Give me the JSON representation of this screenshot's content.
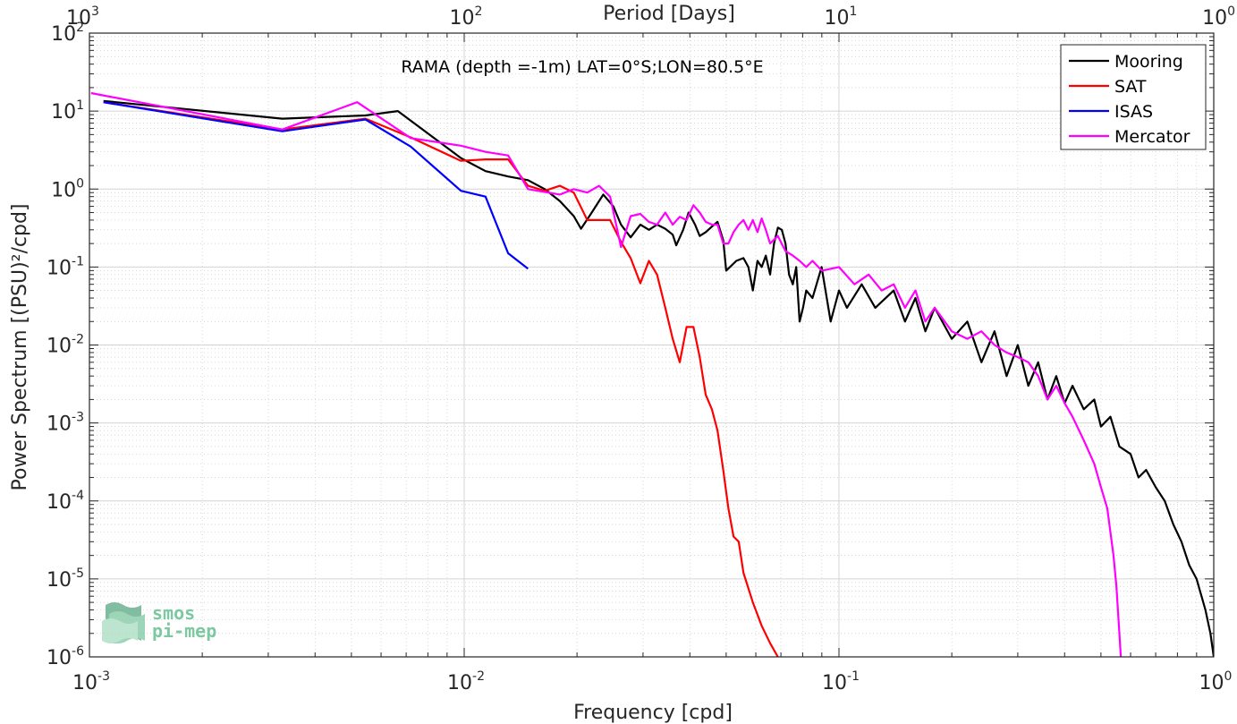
{
  "chart_data": {
    "type": "line",
    "title": "RAMA (depth =-1m) LAT=0°S;LON=80.5°E",
    "xlabel": "Frequency [cpd]",
    "ylabel": "Power Spectrum [(PSU)²/cpd]",
    "top_xlabel": "Period [Days]",
    "x_scale": "log",
    "y_scale": "log",
    "xlim": [
      0.001,
      1
    ],
    "ylim": [
      1e-06,
      100
    ],
    "x_ticks": [
      0.001,
      0.01,
      0.1,
      1
    ],
    "x_tick_labels": [
      {
        "base": "10",
        "exp": "-3"
      },
      {
        "base": "10",
        "exp": "-2"
      },
      {
        "base": "10",
        "exp": "-1"
      },
      {
        "base": "10",
        "exp": "0"
      }
    ],
    "y_ticks": [
      1e-06,
      1e-05,
      0.0001,
      0.001,
      0.01,
      0.1,
      1,
      10,
      100
    ],
    "y_tick_labels": [
      {
        "base": "10",
        "exp": "-6"
      },
      {
        "base": "10",
        "exp": "-5"
      },
      {
        "base": "10",
        "exp": "-4"
      },
      {
        "base": "10",
        "exp": "-3"
      },
      {
        "base": "10",
        "exp": "-2"
      },
      {
        "base": "10",
        "exp": "-1"
      },
      {
        "base": "10",
        "exp": "0"
      },
      {
        "base": "10",
        "exp": "1"
      },
      {
        "base": "10",
        "exp": "2"
      }
    ],
    "top_ticks": [
      {
        "period": 1000,
        "base": "10",
        "exp": "3"
      },
      {
        "period": 100,
        "base": "10",
        "exp": "2"
      },
      {
        "period": 10,
        "base": "10",
        "exp": "1"
      },
      {
        "period": 1,
        "base": "10",
        "exp": "0"
      }
    ],
    "grid": true,
    "legend_position": "top-right",
    "series": [
      {
        "name": "Mooring",
        "color": "#000000",
        "points": [
          [
            0.00109,
            13.5
          ],
          [
            0.00327,
            8.0
          ],
          [
            0.00545,
            8.8
          ],
          [
            0.00665,
            10.0
          ],
          [
            0.0098,
            2.5
          ],
          [
            0.0114,
            1.7
          ],
          [
            0.0131,
            1.45
          ],
          [
            0.0148,
            1.3
          ],
          [
            0.0164,
            1.0
          ],
          [
            0.018,
            0.7
          ],
          [
            0.0196,
            0.45
          ],
          [
            0.0205,
            0.31
          ],
          [
            0.0219,
            0.5
          ],
          [
            0.0235,
            0.85
          ],
          [
            0.025,
            0.6
          ],
          [
            0.0262,
            0.35
          ],
          [
            0.0278,
            0.24
          ],
          [
            0.0295,
            0.35
          ],
          [
            0.0311,
            0.3
          ],
          [
            0.0327,
            0.35
          ],
          [
            0.0344,
            0.31
          ],
          [
            0.036,
            0.26
          ],
          [
            0.0368,
            0.19
          ],
          [
            0.0384,
            0.3
          ],
          [
            0.0397,
            0.5
          ],
          [
            0.0413,
            0.35
          ],
          [
            0.0425,
            0.25
          ],
          [
            0.0441,
            0.28
          ],
          [
            0.0458,
            0.33
          ],
          [
            0.0474,
            0.38
          ],
          [
            0.0491,
            0.22
          ],
          [
            0.05,
            0.09
          ],
          [
            0.0532,
            0.12
          ],
          [
            0.0556,
            0.13
          ],
          [
            0.0573,
            0.1
          ],
          [
            0.0589,
            0.05
          ],
          [
            0.0606,
            0.12
          ],
          [
            0.0622,
            0.1
          ],
          [
            0.0638,
            0.14
          ],
          [
            0.0655,
            0.08
          ],
          [
            0.0671,
            0.2
          ],
          [
            0.0687,
            0.32
          ],
          [
            0.0704,
            0.3
          ],
          [
            0.072,
            0.2
          ],
          [
            0.0736,
            0.08
          ],
          [
            0.0753,
            0.06
          ],
          [
            0.0769,
            0.1
          ],
          [
            0.0785,
            0.02
          ],
          [
            0.0802,
            0.03
          ],
          [
            0.0818,
            0.05
          ],
          [
            0.085,
            0.04
          ],
          [
            0.0899,
            0.1
          ],
          [
            0.095,
            0.02
          ],
          [
            0.1,
            0.05
          ],
          [
            0.105,
            0.03
          ],
          [
            0.115,
            0.06
          ],
          [
            0.125,
            0.03
          ],
          [
            0.14,
            0.05
          ],
          [
            0.15,
            0.02
          ],
          [
            0.16,
            0.04
          ],
          [
            0.17,
            0.015
          ],
          [
            0.18,
            0.03
          ],
          [
            0.2,
            0.012
          ],
          [
            0.22,
            0.02
          ],
          [
            0.24,
            0.006
          ],
          [
            0.26,
            0.015
          ],
          [
            0.28,
            0.004
          ],
          [
            0.3,
            0.01
          ],
          [
            0.32,
            0.003
          ],
          [
            0.34,
            0.006
          ],
          [
            0.36,
            0.002
          ],
          [
            0.38,
            0.004
          ],
          [
            0.4,
            0.0018
          ],
          [
            0.42,
            0.003
          ],
          [
            0.45,
            0.0015
          ],
          [
            0.48,
            0.002
          ],
          [
            0.5,
            0.0009
          ],
          [
            0.53,
            0.0012
          ],
          [
            0.56,
            0.0005
          ],
          [
            0.6,
            0.0004
          ],
          [
            0.63,
            0.0002
          ],
          [
            0.66,
            0.00025
          ],
          [
            0.7,
            0.00015
          ],
          [
            0.74,
            0.0001
          ],
          [
            0.78,
            5e-05
          ],
          [
            0.82,
            3e-05
          ],
          [
            0.86,
            1.5e-05
          ],
          [
            0.9,
            1e-05
          ],
          [
            0.95,
            4e-06
          ],
          [
            0.98,
            2e-06
          ],
          [
            1.0,
            1e-06
          ]
        ]
      },
      {
        "name": "SAT",
        "color": "#ff0000",
        "points": [
          [
            0.00109,
            13.0
          ],
          [
            0.00327,
            5.8
          ],
          [
            0.00545,
            8.0
          ],
          [
            0.0072,
            4.6
          ],
          [
            0.0098,
            2.3
          ],
          [
            0.0114,
            2.4
          ],
          [
            0.0131,
            2.4
          ],
          [
            0.0148,
            1.1
          ],
          [
            0.0164,
            0.95
          ],
          [
            0.018,
            1.1
          ],
          [
            0.0196,
            0.9
          ],
          [
            0.0213,
            0.4
          ],
          [
            0.0245,
            0.4
          ],
          [
            0.0262,
            0.21
          ],
          [
            0.0278,
            0.13
          ],
          [
            0.0295,
            0.062
          ],
          [
            0.0311,
            0.12
          ],
          [
            0.0327,
            0.08
          ],
          [
            0.0344,
            0.03
          ],
          [
            0.036,
            0.012
          ],
          [
            0.0376,
            0.006
          ],
          [
            0.0392,
            0.017
          ],
          [
            0.0409,
            0.017
          ],
          [
            0.0425,
            0.007
          ],
          [
            0.0441,
            0.0023
          ],
          [
            0.0458,
            0.0015
          ],
          [
            0.0474,
            0.0008
          ],
          [
            0.0491,
            0.00025
          ],
          [
            0.0507,
            8e-05
          ],
          [
            0.0523,
            3.5e-05
          ],
          [
            0.054,
            3e-05
          ],
          [
            0.0556,
            1.2e-05
          ],
          [
            0.0589,
            5e-06
          ],
          [
            0.0622,
            2.5e-06
          ],
          [
            0.0655,
            1.5e-06
          ],
          [
            0.0687,
            1e-06
          ]
        ]
      },
      {
        "name": "ISAS",
        "color": "#0000ff",
        "points": [
          [
            0.00109,
            13.0
          ],
          [
            0.00327,
            5.5
          ],
          [
            0.00545,
            7.8
          ],
          [
            0.0072,
            3.5
          ],
          [
            0.0098,
            0.95
          ],
          [
            0.0114,
            0.8
          ],
          [
            0.0131,
            0.15
          ],
          [
            0.0148,
            0.095
          ]
        ]
      },
      {
        "name": "Mercator",
        "color": "#ff00ff",
        "points": [
          [
            0.00101,
            17.0
          ],
          [
            0.00327,
            5.8
          ],
          [
            0.00518,
            13.0
          ],
          [
            0.0072,
            4.5
          ],
          [
            0.0098,
            3.6
          ],
          [
            0.0114,
            3.0
          ],
          [
            0.0131,
            2.7
          ],
          [
            0.0148,
            1.0
          ],
          [
            0.018,
            0.85
          ],
          [
            0.0196,
            1.0
          ],
          [
            0.0213,
            0.9
          ],
          [
            0.0229,
            1.1
          ],
          [
            0.0245,
            0.8
          ],
          [
            0.0262,
            0.18
          ],
          [
            0.0278,
            0.45
          ],
          [
            0.0295,
            0.48
          ],
          [
            0.0311,
            0.38
          ],
          [
            0.0327,
            0.35
          ],
          [
            0.0344,
            0.5
          ],
          [
            0.036,
            0.35
          ],
          [
            0.0376,
            0.44
          ],
          [
            0.0392,
            0.4
          ],
          [
            0.0409,
            0.62
          ],
          [
            0.0425,
            0.5
          ],
          [
            0.0441,
            0.38
          ],
          [
            0.0458,
            0.35
          ],
          [
            0.0474,
            0.35
          ],
          [
            0.0491,
            0.2
          ],
          [
            0.0507,
            0.2
          ],
          [
            0.0523,
            0.28
          ],
          [
            0.054,
            0.35
          ],
          [
            0.0556,
            0.4
          ],
          [
            0.0573,
            0.3
          ],
          [
            0.0589,
            0.4
          ],
          [
            0.0606,
            0.28
          ],
          [
            0.0622,
            0.42
          ],
          [
            0.0638,
            0.3
          ],
          [
            0.0655,
            0.2
          ],
          [
            0.0687,
            0.25
          ],
          [
            0.072,
            0.16
          ],
          [
            0.0753,
            0.14
          ],
          [
            0.0785,
            0.12
          ],
          [
            0.0818,
            0.1
          ],
          [
            0.085,
            0.12
          ],
          [
            0.09,
            0.09
          ],
          [
            0.1,
            0.1
          ],
          [
            0.11,
            0.06
          ],
          [
            0.12,
            0.08
          ],
          [
            0.13,
            0.05
          ],
          [
            0.14,
            0.06
          ],
          [
            0.15,
            0.03
          ],
          [
            0.16,
            0.05
          ],
          [
            0.17,
            0.02
          ],
          [
            0.18,
            0.03
          ],
          [
            0.2,
            0.015
          ],
          [
            0.22,
            0.012
          ],
          [
            0.24,
            0.015
          ],
          [
            0.26,
            0.01
          ],
          [
            0.28,
            0.008
          ],
          [
            0.3,
            0.007
          ],
          [
            0.32,
            0.006
          ],
          [
            0.34,
            0.004
          ],
          [
            0.36,
            0.002
          ],
          [
            0.38,
            0.003
          ],
          [
            0.4,
            0.0018
          ],
          [
            0.42,
            0.0012
          ],
          [
            0.45,
            0.0006
          ],
          [
            0.48,
            0.0003
          ],
          [
            0.5,
            0.00015
          ],
          [
            0.52,
            8e-05
          ],
          [
            0.54,
            2e-05
          ],
          [
            0.55,
            8e-06
          ],
          [
            0.56,
            2e-06
          ],
          [
            0.565,
            1e-06
          ]
        ]
      }
    ]
  },
  "logo": {
    "line1": "smos",
    "line2": "pi-mep"
  }
}
